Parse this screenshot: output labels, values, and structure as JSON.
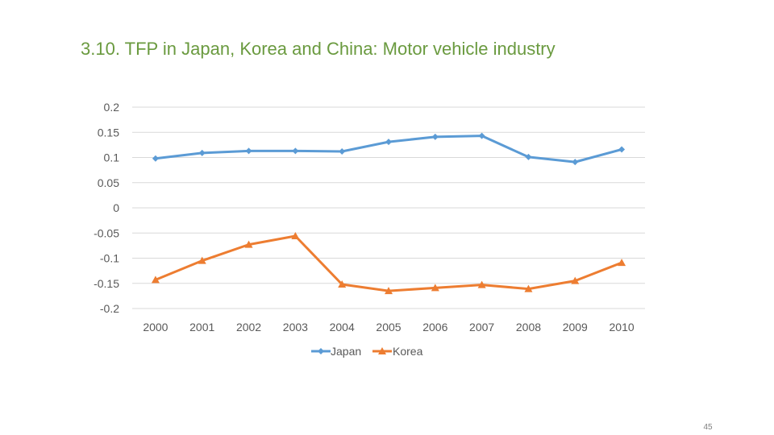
{
  "slide": {
    "title": "3.10. TFP in Japan, Korea and China: Motor vehicle industry",
    "page_number": "45"
  },
  "colors": {
    "title": "#6a9a3f",
    "japan": "#5b9bd5",
    "korea": "#ed7d31",
    "grid": "#d9d9d9",
    "text": "#595959"
  },
  "chart_data": {
    "type": "line",
    "title": "",
    "xlabel": "",
    "ylabel": "",
    "categories": [
      "2000",
      "2001",
      "2002",
      "2003",
      "2004",
      "2005",
      "2006",
      "2007",
      "2008",
      "2009",
      "2010"
    ],
    "ylim": [
      -0.2,
      0.2
    ],
    "yticks": [
      0.2,
      0.15,
      0.1,
      0.05,
      0,
      -0.05,
      -0.1,
      -0.15,
      -0.2
    ],
    "ytick_labels": [
      "0.2",
      "0.15",
      "0.1",
      "0.05",
      "0",
      "-0.05",
      "-0.1",
      "-0.15",
      "-0.2"
    ],
    "grid": true,
    "legend_position": "bottom",
    "series": [
      {
        "name": "Japan",
        "marker": "diamond",
        "values": [
          0.098,
          0.109,
          0.113,
          0.113,
          0.112,
          0.131,
          0.141,
          0.143,
          0.101,
          0.091,
          0.116
        ]
      },
      {
        "name": "Korea",
        "marker": "triangle",
        "values": [
          -0.143,
          -0.105,
          -0.073,
          -0.056,
          -0.152,
          -0.165,
          -0.159,
          -0.153,
          -0.161,
          -0.145,
          -0.109
        ]
      }
    ]
  }
}
